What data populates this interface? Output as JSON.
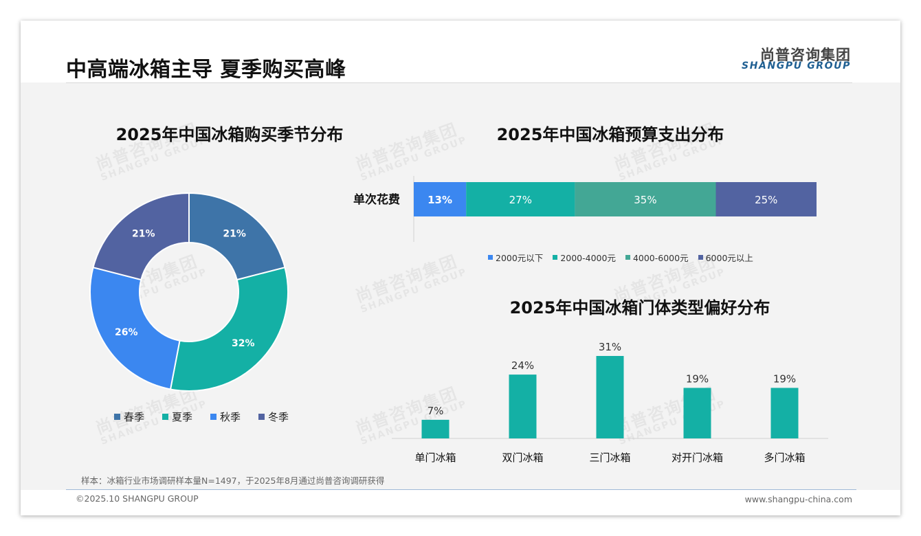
{
  "header": {
    "title": "中高端冰箱主导 夏季购买高峰",
    "logo_cn": "尚普咨询集团",
    "logo_en": "SHANGPU GROUP"
  },
  "watermark": {
    "cn": "尚普咨询集团",
    "en": "SHANGPU GROUP"
  },
  "colors": {
    "spring": "#3e74a8",
    "summer": "#14b0a5",
    "autumn": "#3b87f0",
    "winter": "#5263a1",
    "budget_a": "#3b87f0",
    "budget_b": "#14b0a5",
    "budget_c": "#43a795",
    "budget_d": "#5263a1",
    "bar": "#14b0a5"
  },
  "chart_data": [
    {
      "type": "pie",
      "title": "2025年中国冰箱购买季节分布",
      "labels": [
        "春季",
        "夏季",
        "秋季",
        "冬季"
      ],
      "values": [
        21,
        32,
        26,
        21
      ],
      "value_labels": [
        "21%",
        "32%",
        "26%",
        "21%"
      ],
      "legend": "bottom"
    },
    {
      "type": "bar",
      "orientation": "horizontal-stacked",
      "title": "2025年中国冰箱预算支出分布",
      "categories": [
        "单次花费"
      ],
      "series": [
        {
          "name": "2000元以下",
          "values": [
            13
          ],
          "label": "13%"
        },
        {
          "name": "2000-4000元",
          "values": [
            27
          ],
          "label": "27%"
        },
        {
          "name": "4000-6000元",
          "values": [
            35
          ],
          "label": "35%"
        },
        {
          "name": "6000元以上",
          "values": [
            25
          ],
          "label": "25%"
        }
      ],
      "legend": "bottom"
    },
    {
      "type": "bar",
      "title": "2025年中国冰箱门体类型偏好分布",
      "categories": [
        "单门冰箱",
        "双门冰箱",
        "三门冰箱",
        "对开门冰箱",
        "多门冰箱"
      ],
      "values": [
        7,
        24,
        31,
        19,
        19
      ],
      "value_labels": [
        "7%",
        "24%",
        "31%",
        "19%",
        "19%"
      ],
      "ylim": [
        0,
        31
      ]
    }
  ],
  "footer": {
    "note": "样本：冰箱行业市场调研样本量N=1497，于2025年8月通过尚普咨询调研获得",
    "copyright": "©2025.10 SHANGPU GROUP",
    "website": "www.shangpu-china.com"
  }
}
